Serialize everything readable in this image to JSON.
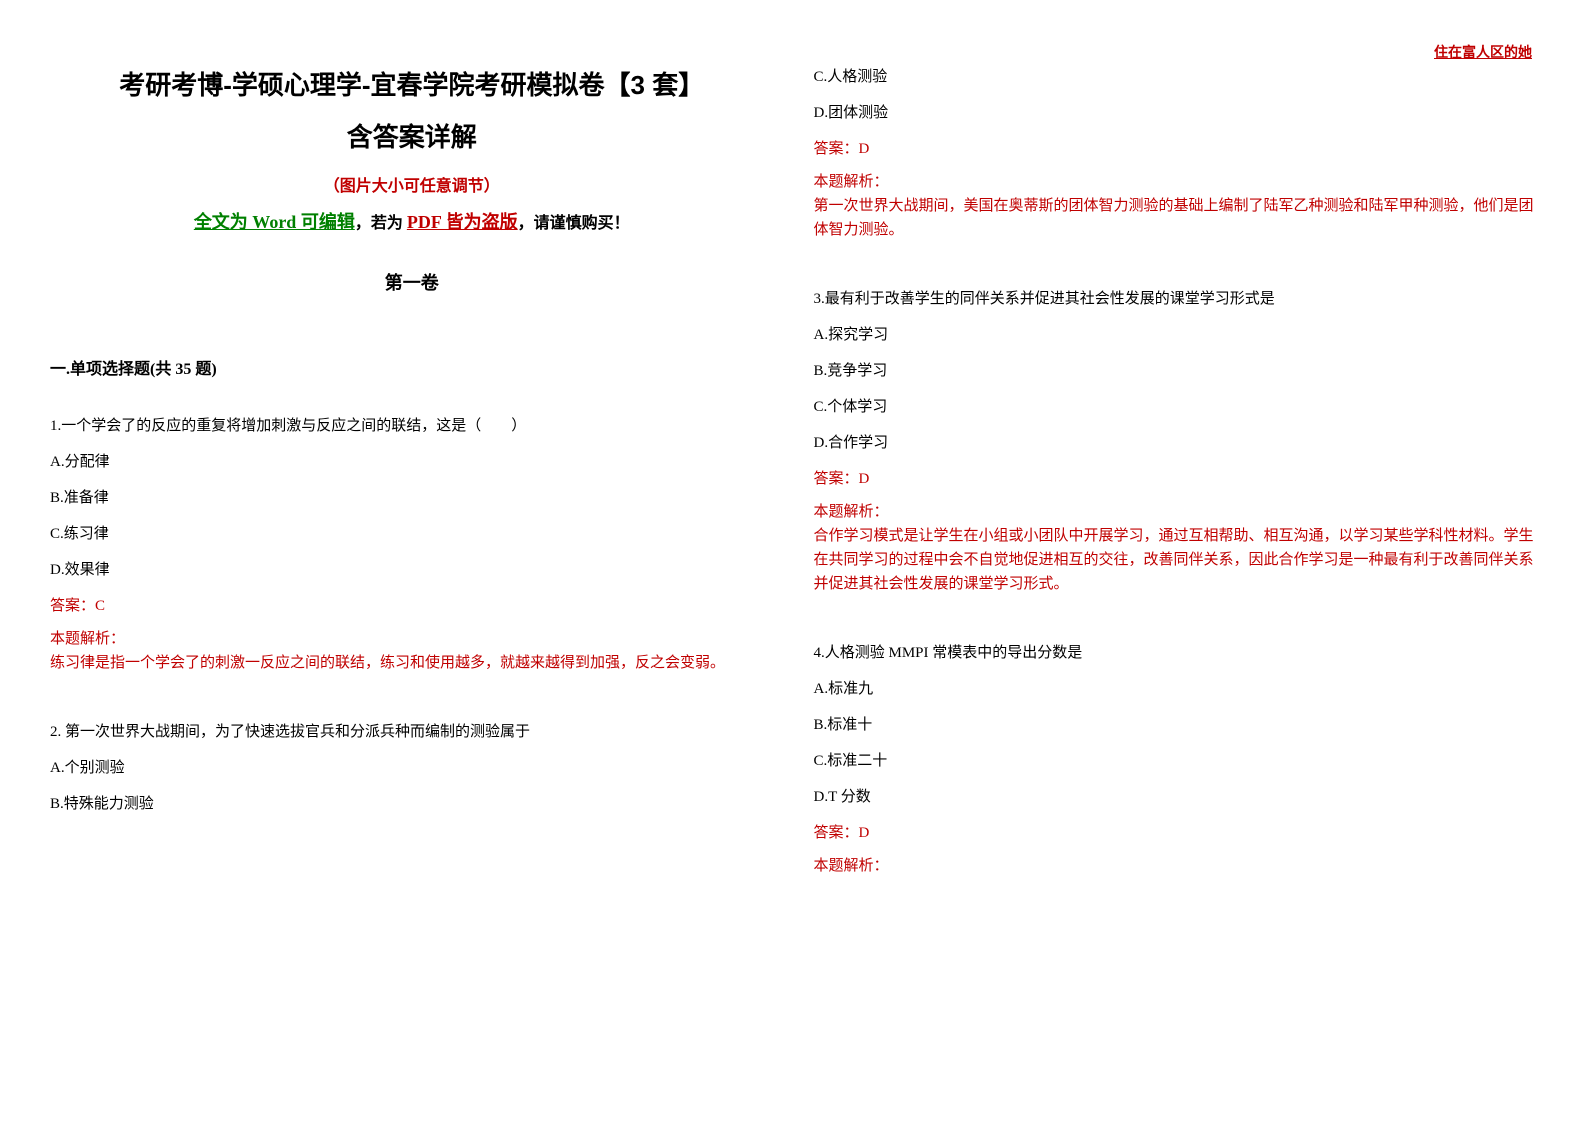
{
  "watermark": "住在富人区的她",
  "header": {
    "title_main": "考研考博-学硕心理学-宜春学院考研模拟卷【3 套】",
    "title_sub": "含答案详解",
    "note_resize": "（图片大小可任意调节）",
    "note_word": "全文为 Word 可编辑",
    "note_comma": "，若为 ",
    "note_pdf": "PDF 皆为盗版",
    "note_warning": "，请谨慎购买！",
    "volume": "第一卷",
    "section": "一.单项选择题(共 35 题)"
  },
  "questions": [
    {
      "number": "1.",
      "text": "一个学会了的反应的重复将增加刺激与反应之间的联结，这是（　　）",
      "options": {
        "A": "A.分配律",
        "B": "B.准备律",
        "C": "C.练习律",
        "D": "D.效果律"
      },
      "answer": "答案：C",
      "explanation_label": "本题解析：",
      "explanation": "练习律是指一个学会了的刺激一反应之间的联结，练习和使用越多，就越来越得到加强，反之会变弱。"
    },
    {
      "number": "2.",
      "text": " 第一次世界大战期间，为了快速选拔官兵和分派兵种而编制的测验属于",
      "options": {
        "A": "A.个别测验",
        "B": "B.特殊能力测验",
        "C": "C.人格测验",
        "D": "D.团体测验"
      },
      "answer": "答案：D",
      "explanation_label": "本题解析：",
      "explanation": "第一次世界大战期间，美国在奥蒂斯的团体智力测验的基础上编制了陆军乙种测验和陆军甲种测验，他们是团体智力测验。"
    },
    {
      "number": "3.",
      "text": "最有利于改善学生的同伴关系并促进其社会性发展的课堂学习形式是",
      "options": {
        "A": "A.探究学习",
        "B": "B.竞争学习",
        "C": "C.个体学习",
        "D": "D.合作学习"
      },
      "answer": "答案：D",
      "explanation_label": "本题解析：",
      "explanation": "合作学习模式是让学生在小组或小团队中开展学习，通过互相帮助、相互沟通，以学习某些学科性材料。学生在共同学习的过程中会不自觉地促进相互的交往，改善同伴关系，因此合作学习是一种最有利于改善同伴关系并促进其社会性发展的课堂学习形式。"
    },
    {
      "number": "4.",
      "text": "人格测验 MMPI 常模表中的导出分数是",
      "options": {
        "A": "A.标准九",
        "B": "B.标准十",
        "C": "C.标准二十",
        "D": "D.T 分数"
      },
      "answer": "答案：D",
      "explanation_label": "本题解析："
    }
  ],
  "colors": {
    "red": "#c00000",
    "green": "#008000",
    "black": "#000000",
    "background": "#ffffff"
  }
}
